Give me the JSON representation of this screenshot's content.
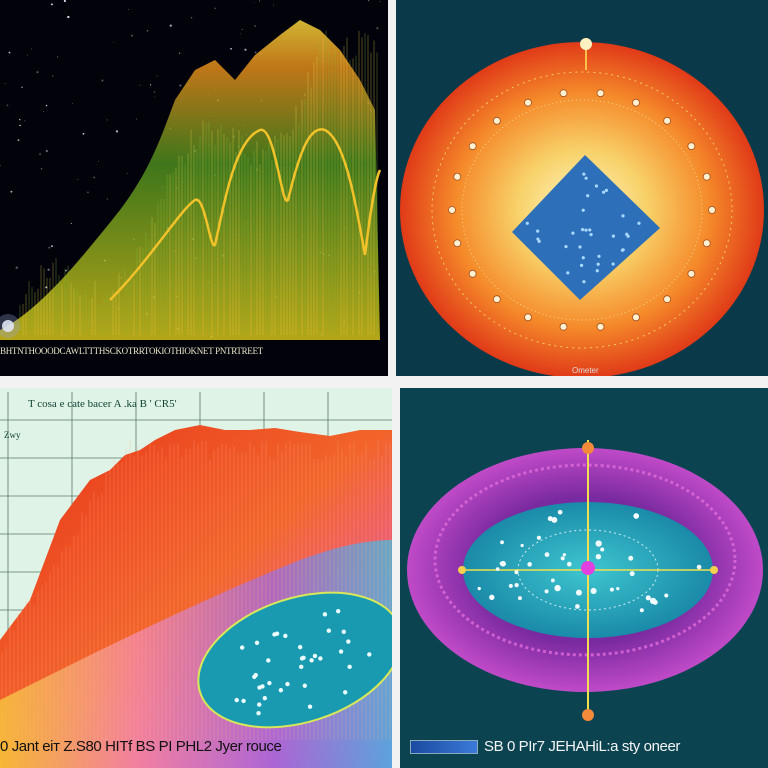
{
  "panels": {
    "top_left": {
      "caption": "BHTNTHOOODCAWLTTTHSCKOTRRTOKIOTHIOKNET PNTRTREET"
    },
    "top_right": {
      "caption": "Ometer"
    },
    "bottom_left": {
      "header": "T cosa e cate bacer A  .ka  B  '  CR5' ",
      "axis_label": "Zwy",
      "footer": "0 Jant eiт Z.S80 HITf BS PI PHL2 Jyer rouce"
    },
    "bottom_right": {
      "footer": "SB 0 PIr7 JEHAHiL:a sty oneer"
    }
  },
  "colors": {
    "divider": "#f2f2f2",
    "wave_yellow": "#f5d33a",
    "wave_green": "#4a8a1e",
    "wave_orange": "#f05a1a",
    "disk_orange": "#f4561e",
    "disk_yellow": "#f8c84a",
    "diamond_blue": "#2d6fb8",
    "ring_purple": "#b04ac8",
    "ellipse_cyan": "#2aa6b8"
  }
}
